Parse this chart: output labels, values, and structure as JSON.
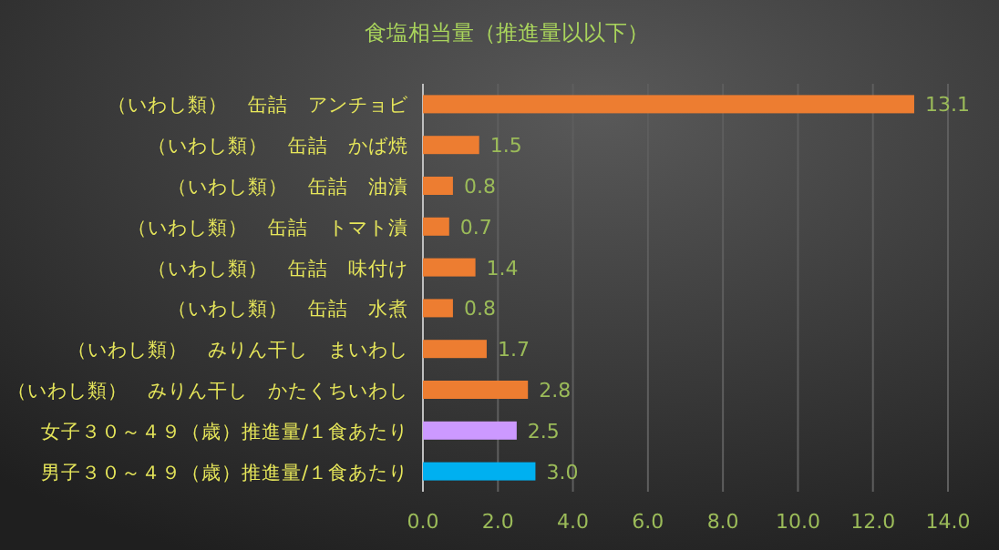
{
  "chart_data": {
    "type": "bar",
    "orientation": "horizontal",
    "title": "食塩相当量（推進量以以下）",
    "categories": [
      "（いわし類）　缶詰　アンチョビ",
      "（いわし類）　缶詰　かば焼",
      "（いわし類）　缶詰　油漬",
      "（いわし類）　缶詰　トマト漬",
      "（いわし類）　缶詰　味付け",
      "（いわし類）　缶詰　水煮",
      "（いわし類）　みりん干し　まいわし",
      "（いわし類）　みりん干し　かたくちいわし",
      "女子３０～４９（歳）推進量/１食あたり",
      "男子３０～４９（歳）推進量/１食あたり"
    ],
    "values": [
      13.1,
      1.5,
      0.8,
      0.7,
      1.4,
      0.8,
      1.7,
      2.8,
      2.5,
      3.0
    ],
    "value_labels": [
      "13.1",
      "1.5",
      "0.8",
      "0.7",
      "1.4",
      "0.8",
      "1.7",
      "2.8",
      "2.5",
      "3.0"
    ],
    "colors": [
      "#ed7d31",
      "#ed7d31",
      "#ed7d31",
      "#ed7d31",
      "#ed7d31",
      "#ed7d31",
      "#ed7d31",
      "#ed7d31",
      "#cc99ff",
      "#00b0f0"
    ],
    "xlim": [
      0,
      14
    ],
    "xticks": [
      {
        "value": 0,
        "label": "0.0"
      },
      {
        "value": 2,
        "label": "2.0"
      },
      {
        "value": 4,
        "label": "4.0"
      },
      {
        "value": 6,
        "label": "6.0"
      },
      {
        "value": 8,
        "label": "8.0"
      },
      {
        "value": 10,
        "label": "10.0"
      },
      {
        "value": 12,
        "label": "12.0"
      },
      {
        "value": 14,
        "label": "14.0"
      }
    ],
    "grid": "x"
  }
}
